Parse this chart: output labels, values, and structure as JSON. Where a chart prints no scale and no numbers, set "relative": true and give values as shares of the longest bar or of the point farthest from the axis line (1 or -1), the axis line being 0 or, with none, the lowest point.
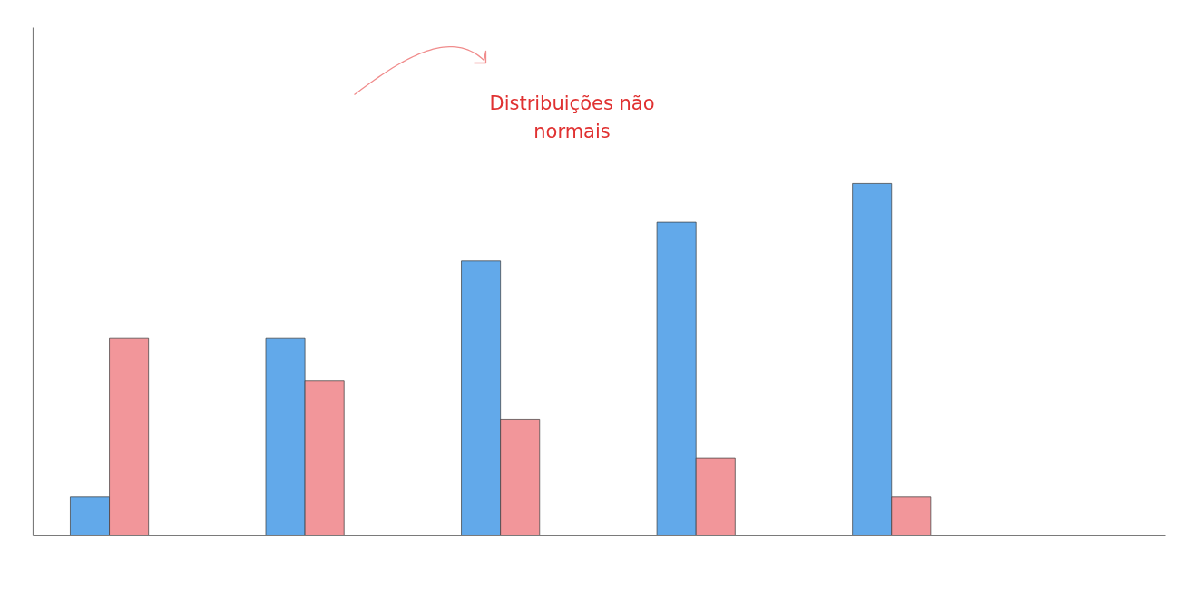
{
  "chart_data": {
    "type": "bar",
    "relative": true,
    "categories": [
      null,
      null,
      null,
      null,
      null
    ],
    "series": [
      {
        "color": "#62a9ea",
        "values": [
          0.11,
          0.56,
          0.78,
          0.89,
          1
        ]
      },
      {
        "color": "#f2969a",
        "values": [
          0.56,
          0.44,
          0.33,
          0.22,
          0.11
        ]
      }
    ],
    "annotations": [
      "Distribuições não normais"
    ]
  }
}
